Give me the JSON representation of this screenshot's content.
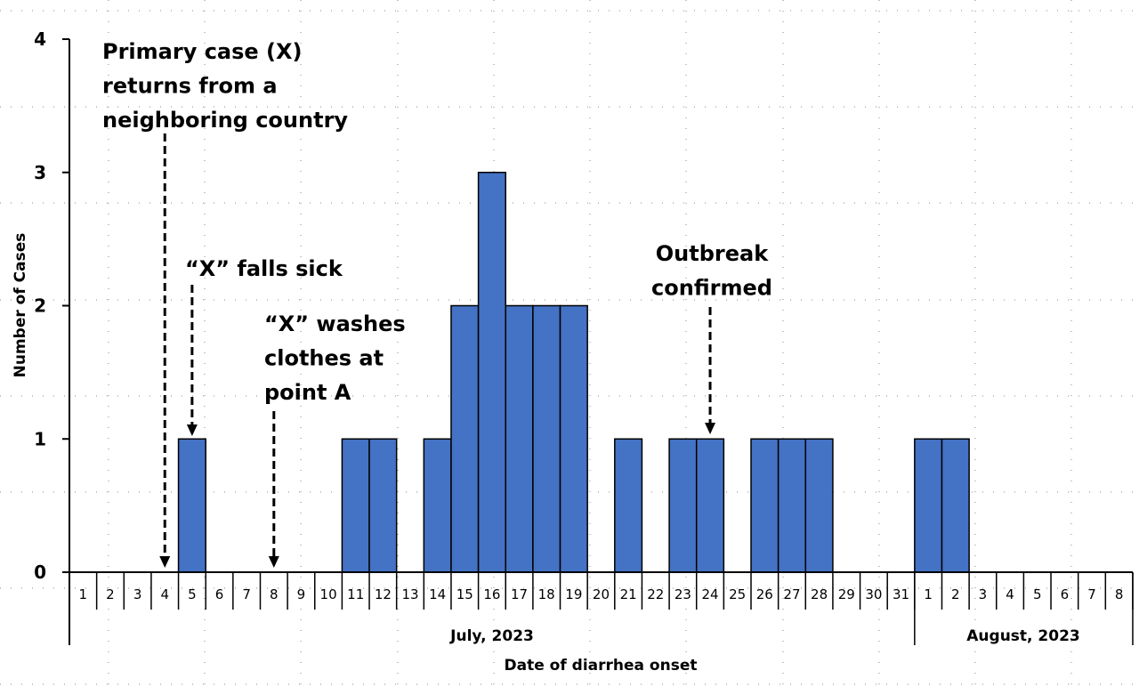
{
  "chart_data": {
    "type": "bar",
    "title": "",
    "xlabel": "Date of diarrhea onset",
    "ylabel": "Number of Cases",
    "ylim": [
      0,
      4
    ],
    "yticks": [
      0,
      1,
      2,
      3,
      4
    ],
    "grid": false,
    "bar_color": "#4472C4",
    "groups": [
      {
        "label": "July, 2023",
        "days": [
          "1",
          "2",
          "3",
          "4",
          "5",
          "6",
          "7",
          "8",
          "9",
          "10",
          "11",
          "12",
          "13",
          "14",
          "15",
          "16",
          "17",
          "18",
          "19",
          "20",
          "21",
          "22",
          "23",
          "24",
          "25",
          "26",
          "27",
          "28",
          "29",
          "30",
          "31"
        ],
        "values": [
          0,
          0,
          0,
          0,
          1,
          0,
          0,
          0,
          0,
          0,
          1,
          1,
          0,
          1,
          2,
          3,
          2,
          2,
          2,
          0,
          1,
          0,
          1,
          1,
          0,
          1,
          1,
          1,
          0,
          0,
          0
        ]
      },
      {
        "label": "August, 2023",
        "days": [
          "1",
          "2",
          "3",
          "4",
          "5",
          "6",
          "7",
          "8"
        ],
        "values": [
          1,
          1,
          0,
          0,
          0,
          0,
          0,
          0
        ]
      }
    ],
    "annotations": [
      {
        "lines": [
          "Primary case (X)",
          "returns from a",
          "neighboring country"
        ],
        "points_to": "July 4"
      },
      {
        "lines": [
          "“X” falls sick"
        ],
        "points_to": "July 5"
      },
      {
        "lines": [
          "“X” washes",
          "clothes at",
          "point A"
        ],
        "points_to": "July 8"
      },
      {
        "lines": [
          "Outbreak",
          "confirmed"
        ],
        "points_to": "July 24"
      }
    ]
  }
}
